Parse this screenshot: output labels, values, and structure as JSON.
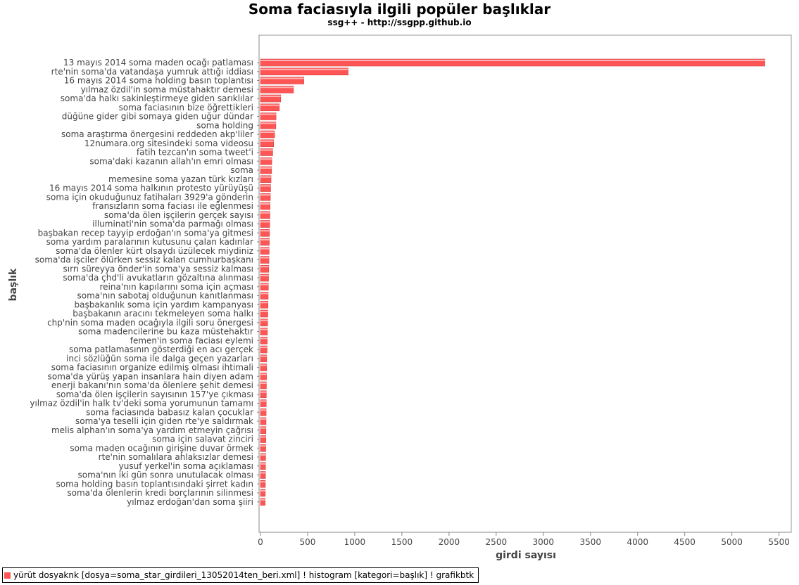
{
  "chart_data": {
    "type": "bar",
    "orientation": "horizontal",
    "title": "Soma faciasıyla ilgili popüler başlıklar",
    "subtitle": "ssg++ - http://ssgpp.github.io",
    "xlabel": "girdi sayısı",
    "ylabel": "başlık",
    "xlim": [
      0,
      5600
    ],
    "xticks": [
      0,
      500,
      1000,
      1500,
      2000,
      2500,
      3000,
      3500,
      4000,
      4500,
      5000,
      5500
    ],
    "grid": false,
    "legend_position": "bottom-left",
    "bar_color": "#ff5555",
    "series": [
      {
        "name": "yürüt dosyaknk [dosya=soma_star_girdileri_13052014ten_beri.xml] ! histogram [kategori=başlık] ! grafikbtk"
      }
    ],
    "categories": [
      "13 mayıs 2014 soma maden ocağı patlaması",
      "rte'nin soma'da vatandaşa yumruk attığı iddiası",
      "16 mayıs 2014 soma holding basın toplantısı",
      "yılmaz özdil'in soma müstahaktır demesi",
      "soma'da halkı sakinleştirmeye giden sarıklılar",
      "soma faciasının bize öğrettikleri",
      "düğüne gider gibi somaya giden uğur dündar",
      "soma holding",
      "soma araştırma önergesini reddeden akp'liler",
      "12numara.org sitesindeki soma videosu",
      "fatih tezcan'ın soma tweet'i",
      "soma'daki kazanın allah'ın emri olması",
      "soma",
      "memesine soma yazan türk kızları",
      "16 mayıs 2014 soma halkının protesto yürüyüşü",
      "soma için okuduğunuz fatihaları 3929'a gönderin",
      "fransızların soma faciası ile eğlenmesi",
      "soma'da ölen işçilerin gerçek sayısı",
      "illuminati'nin soma'da parmağı olması",
      "başbakan recep tayyip erdoğan'ın soma'ya gitmesi",
      "soma yardım paralarının kutusunu çalan kadınlar",
      "soma'da ölenler kürt olsaydı üzülecek miydiniz",
      "soma'da işciler ölürken sessiz kalan cumhurbaşkanı",
      "sırrı süreyya önder'in soma'ya sessiz kalması",
      "soma'da çhd'li avukatların gözaltına alınması",
      "reina'nın kapılarını soma için açması",
      "soma'nın sabotaj olduğunun kanıtlanması",
      "başbakanlık soma için yardım kampanyası",
      "başbakanın aracını tekmeleyen soma halkı",
      "chp'nin soma maden ocağıyla ilgili soru önergesi",
      "soma madencilerine bu kaza müstehaktır",
      "femen'in soma faciası eylemi",
      "soma patlamasının gösterdiği en acı gerçek",
      "inci sözlüğün soma ile dalga geçen yazarları",
      "soma faciasının organize edilmiş olması ihtimali",
      "soma'da yürüş yapan insanlara hain diyen adam",
      "enerji bakanı'nın soma'da ölenlere şehit demesi",
      "soma'da ölen işçilerin sayısının 157'ye çıkması",
      "yılmaz özdil'in halk tv'deki soma yorumunun tamamı",
      "soma faciasında babasız kalan çocuklar",
      "soma'ya teselli için giden rte'ye saldırmak",
      "melis alphan'ın soma'ya yardım etmeyin çağrısı",
      "soma için salavat zinciri",
      "soma maden ocağının girişine duvar örmek",
      "rte'nin somalılara ahlaksızlar demesi",
      "yusuf yerkel'in soma açıklaması",
      "soma'nın iki gün sonra unutulacak olması",
      "soma holding basın toplantısındaki şirret kadın",
      "soma'da ölenlerin kredi borçlarının silinmesi",
      "yılmaz erdoğan'dan soma şiiri"
    ],
    "values": [
      5350,
      930,
      460,
      350,
      215,
      200,
      165,
      163,
      150,
      140,
      130,
      120,
      118,
      112,
      108,
      105,
      102,
      100,
      98,
      96,
      94,
      92,
      90,
      88,
      86,
      84,
      82,
      80,
      78,
      76,
      74,
      72,
      70,
      66,
      65,
      64,
      63,
      62,
      61,
      60,
      59,
      58,
      57,
      56,
      55,
      54,
      53,
      52,
      51,
      50
    ]
  }
}
